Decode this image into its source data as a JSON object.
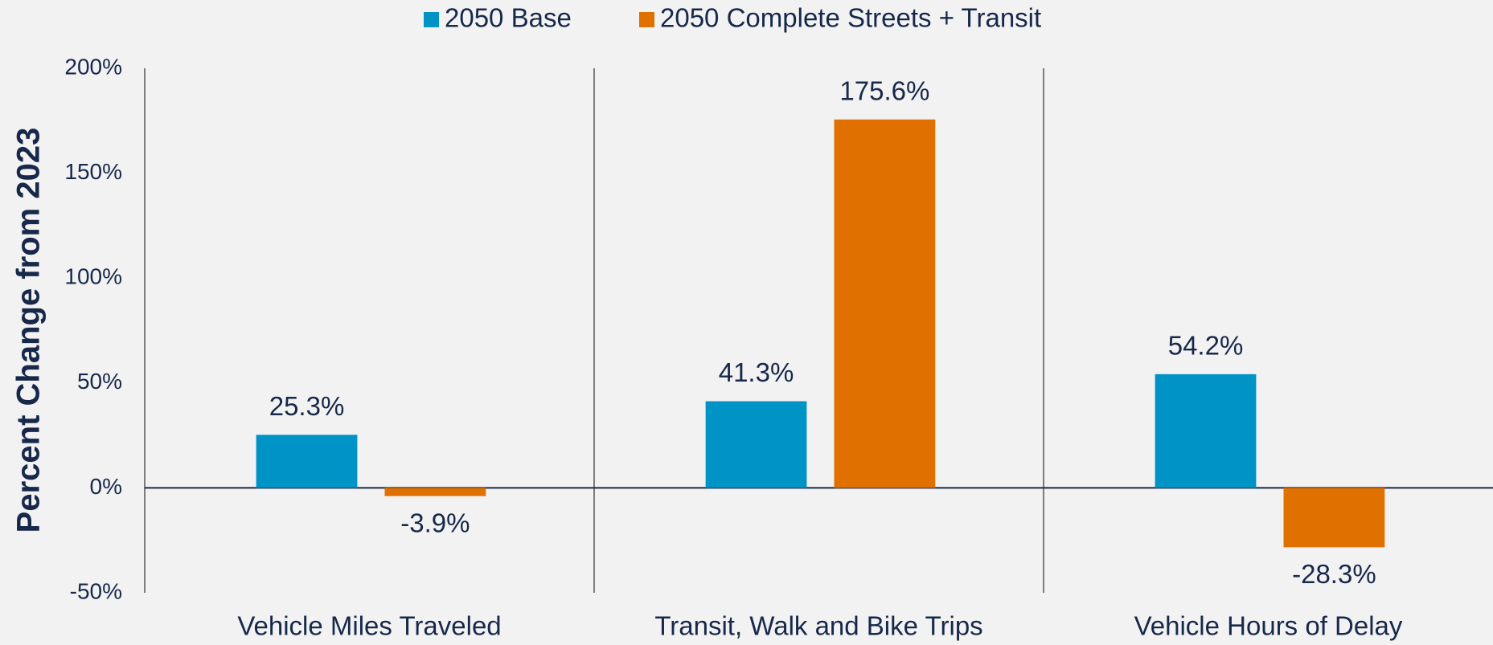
{
  "chart_data": {
    "type": "bar",
    "y_axis_label": "Percent Change from 2023",
    "categories": [
      "Vehicle Miles Traveled",
      "Transit, Walk and Bike Trips",
      "Vehicle Hours of Delay"
    ],
    "series": [
      {
        "name": "2050 Base",
        "color": "#0093c6",
        "values": [
          25.3,
          41.3,
          54.2
        ],
        "value_labels": [
          "25.3%",
          "41.3%",
          "54.2%"
        ]
      },
      {
        "name": "2050 Complete Streets + Transit",
        "color": "#e07000",
        "values": [
          -3.9,
          175.6,
          -28.3
        ],
        "value_labels": [
          "-3.9%",
          "175.6%",
          "-28.3%"
        ]
      }
    ],
    "ylim": [
      -50,
      200
    ],
    "yticks": [
      {
        "value": -50,
        "label": "-50%"
      },
      {
        "value": 0,
        "label": "0%"
      },
      {
        "value": 50,
        "label": "50%"
      },
      {
        "value": 100,
        "label": "100%"
      },
      {
        "value": 150,
        "label": "150%"
      },
      {
        "value": 200,
        "label": "200%"
      }
    ],
    "legend": "top"
  }
}
